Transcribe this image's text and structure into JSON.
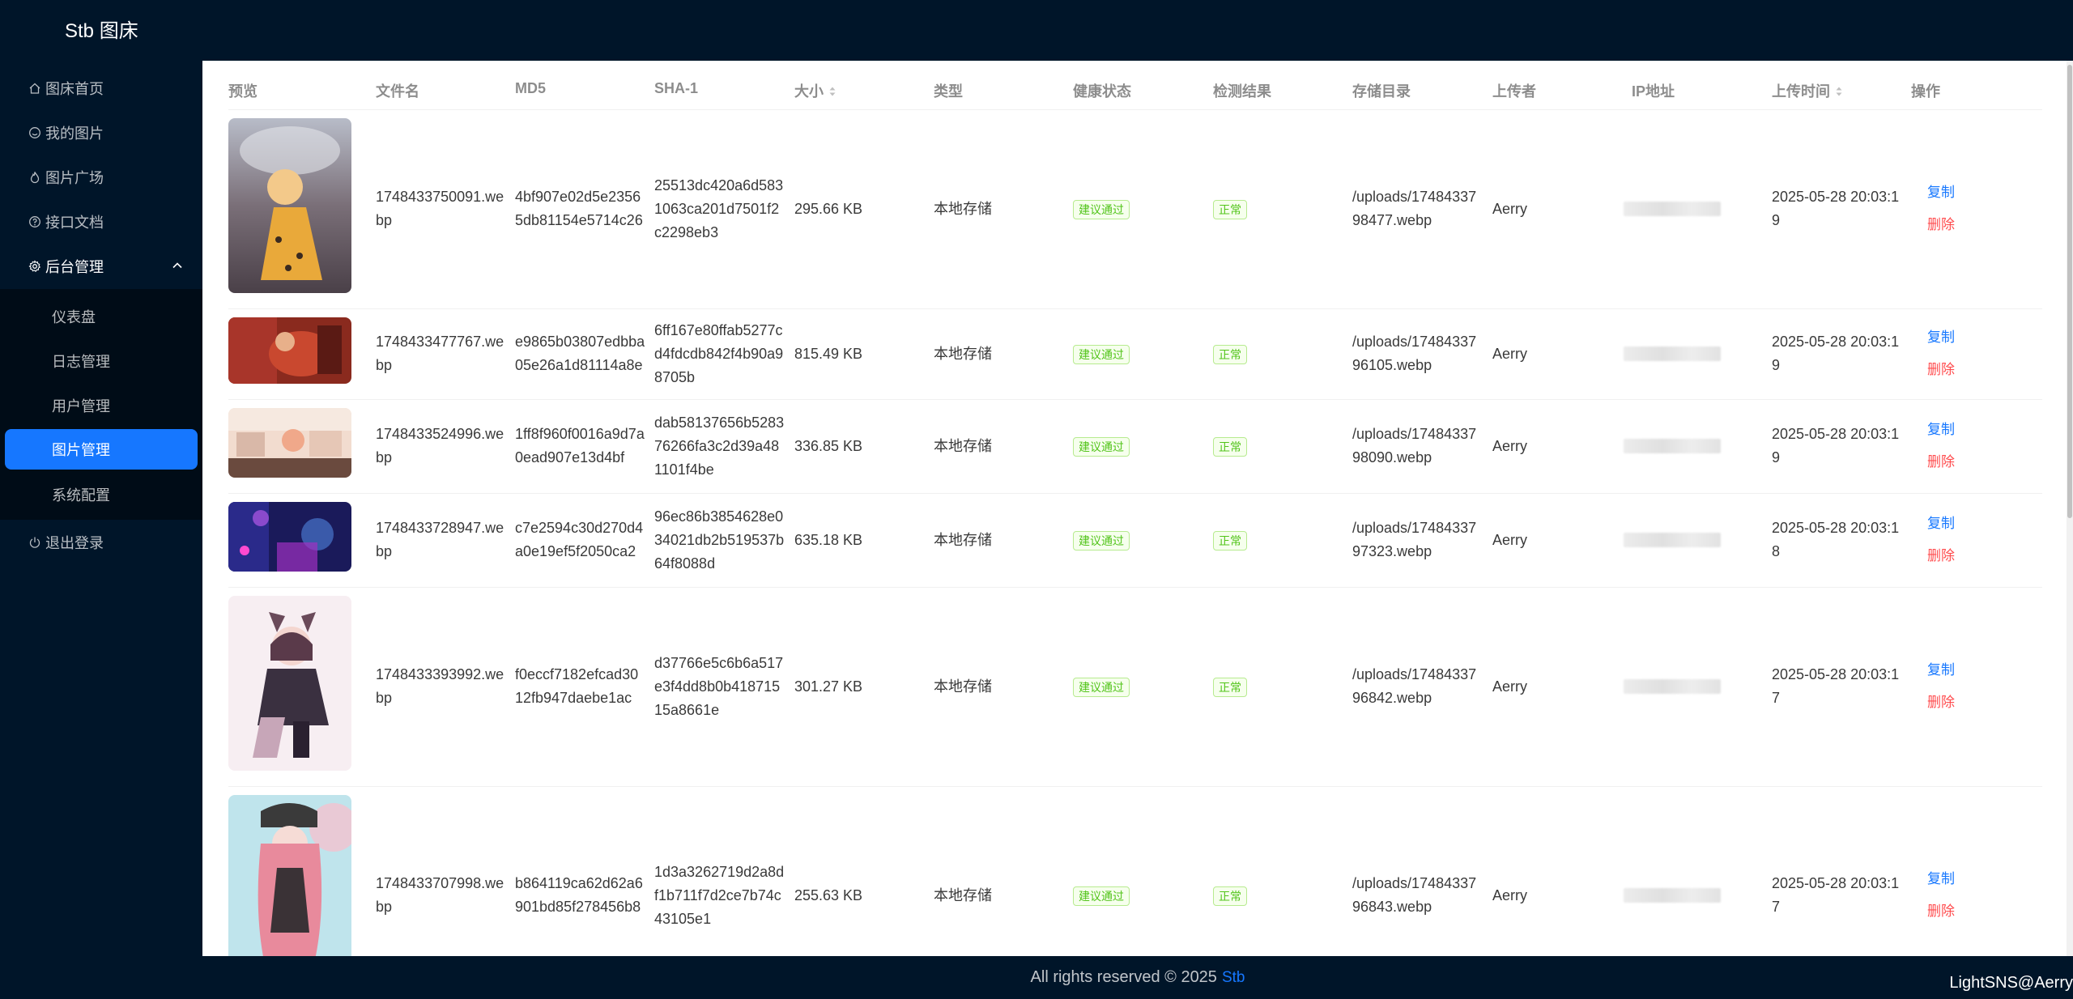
{
  "app": {
    "title": "Stb 图床"
  },
  "sidebar": {
    "items": [
      {
        "label": "图床首页",
        "icon": "home-icon"
      },
      {
        "label": "我的图片",
        "icon": "smile-icon"
      },
      {
        "label": "图片广场",
        "icon": "fire-icon"
      },
      {
        "label": "接口文档",
        "icon": "question-icon"
      }
    ],
    "admin_group": {
      "label": "后台管理",
      "icon": "gear-icon",
      "expanded": true
    },
    "admin_items": [
      {
        "label": "仪表盘"
      },
      {
        "label": "日志管理"
      },
      {
        "label": "用户管理"
      },
      {
        "label": "图片管理",
        "active": true
      },
      {
        "label": "系统配置"
      }
    ],
    "logout": {
      "label": "退出登录",
      "icon": "power-icon"
    },
    "active_color": "#1677ff"
  },
  "table": {
    "headers": [
      "预览",
      "文件名",
      "MD5",
      "SHA-1",
      "大小",
      "类型",
      "健康状态",
      "检测结果",
      "存储目录",
      "上传者",
      "IP地址",
      "上传时间",
      "操作"
    ],
    "rows": [
      {
        "filename": "1748433750091.webp",
        "md5": "4bf907e02d5e23565db81154e5714c26",
        "sha1": "25513dc420a6d5831063ca201d7501f2c2298eb3",
        "size": "295.66 KB",
        "type": "本地存储",
        "health": "建议通过",
        "result": "正常",
        "dir": "/uploads/1748433798477.webp",
        "uploader": "Aerry",
        "time": "2025-05-28 20:03:19",
        "copy": "复制",
        "delete": "删除"
      },
      {
        "filename": "1748433477767.webp",
        "md5": "e9865b03807edbba05e26a1d81114a8e",
        "sha1": "6ff167e80ffab5277cd4fdcdb842f4b90a98705b",
        "size": "815.49 KB",
        "type": "本地存储",
        "health": "建议通过",
        "result": "正常",
        "dir": "/uploads/1748433796105.webp",
        "uploader": "Aerry",
        "time": "2025-05-28 20:03:19",
        "copy": "复制",
        "delete": "删除"
      },
      {
        "filename": "1748433524996.webp",
        "md5": "1ff8f960f0016a9d7a0ead907e13d4bf",
        "sha1": "dab58137656b528376266fa3c2d39a481101f4be",
        "size": "336.85 KB",
        "type": "本地存储",
        "health": "建议通过",
        "result": "正常",
        "dir": "/uploads/1748433798090.webp",
        "uploader": "Aerry",
        "time": "2025-05-28 20:03:19",
        "copy": "复制",
        "delete": "删除"
      },
      {
        "filename": "1748433728947.webp",
        "md5": "c7e2594c30d270d4a0e19ef5f2050ca2",
        "sha1": "96ec86b3854628e034021db2b519537b64f8088d",
        "size": "635.18 KB",
        "type": "本地存储",
        "health": "建议通过",
        "result": "正常",
        "dir": "/uploads/1748433797323.webp",
        "uploader": "Aerry",
        "time": "2025-05-28 20:03:18",
        "copy": "复制",
        "delete": "删除"
      },
      {
        "filename": "1748433393992.webp",
        "md5": "f0eccf7182efcad3012fb947daebe1ac",
        "sha1": "d37766e5c6b6a517e3f4dd8b0b41871515a8661e",
        "size": "301.27 KB",
        "type": "本地存储",
        "health": "建议通过",
        "result": "正常",
        "dir": "/uploads/1748433796842.webp",
        "uploader": "Aerry",
        "time": "2025-05-28 20:03:17",
        "copy": "复制",
        "delete": "删除"
      },
      {
        "filename": "1748433707998.webp",
        "md5": "b864119ca62d62a6901bd85f278456b8",
        "sha1": "1d3a3262719d2a8df1b711f7d2ce7b74c43105e1",
        "size": "255.63 KB",
        "type": "本地存储",
        "health": "建议通过",
        "result": "正常",
        "dir": "/uploads/1748433796843.webp",
        "uploader": "Aerry",
        "time": "2025-05-28 20:03:17",
        "copy": "复制",
        "delete": "删除"
      }
    ]
  },
  "footer": {
    "text": "All rights reserved © 2025",
    "brand": "Stb"
  },
  "watermark": "LightSNS@Aerry"
}
